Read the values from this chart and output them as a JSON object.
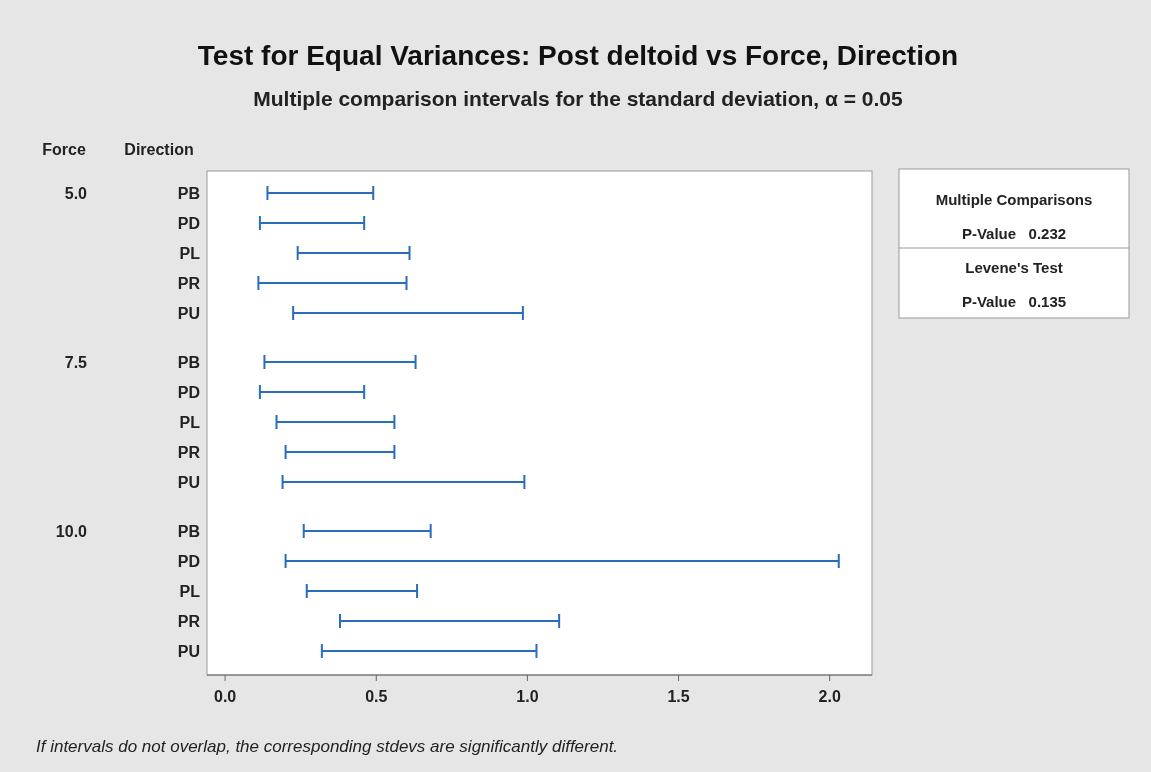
{
  "chart_data": {
    "type": "bar",
    "orientation": "horizontal",
    "title": "Test for Equal Variances: Post deltoid vs Force, Direction",
    "subtitle": "Multiple comparison intervals for the standard deviation, α = 0.05",
    "categories": [
      "PB",
      "PD",
      "PL",
      "PR",
      "PU",
      "PB",
      "PD",
      "PL",
      "PR",
      "PU",
      "PB",
      "PD",
      "PL",
      "PR",
      "PU"
    ],
    "base": [
      0.14,
      0.115,
      0.24,
      0.11,
      0.225,
      0.13,
      0.115,
      0.17,
      0.2,
      0.19,
      0.26,
      0.2,
      0.27,
      0.38,
      0.32
    ],
    "values": [
      0.35,
      0.345,
      0.37,
      0.49,
      0.76,
      0.5,
      0.345,
      0.39,
      0.36,
      0.8,
      0.42,
      1.83,
      0.365,
      0.725,
      0.71
    ],
    "color": "#2a6ebb",
    "xlim": [
      -0.06,
      2.14
    ],
    "xticks": [
      {
        "value": 0,
        "label": "0.0"
      },
      {
        "value": 0.5,
        "label": "0.5"
      },
      {
        "value": 1,
        "label": "1.0"
      },
      {
        "value": 1.5,
        "label": "1.5"
      },
      {
        "value": 2,
        "label": "2.0"
      }
    ],
    "annotations": [
      "Force",
      "Direction",
      "5.0",
      "7.5",
      "10.0",
      "Multiple Comparisons",
      "P-Value   0.232",
      "Levene's Test",
      "P-Value   0.135",
      "If intervals do not overlap, the corresponding stdevs are significantly different."
    ]
  }
}
